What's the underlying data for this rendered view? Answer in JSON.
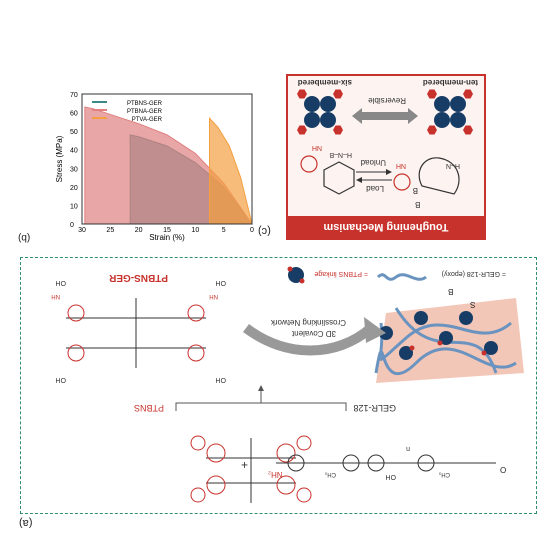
{
  "panel_b": {
    "label": "(b)",
    "chart_data": {
      "type": "area",
      "xlabel": "Strain (%)",
      "ylabel": "Stress (MPa)",
      "xlim": [
        0,
        30
      ],
      "ylim": [
        0,
        70
      ],
      "x_ticks": [
        "0",
        "5",
        "10",
        "15",
        "20",
        "25",
        "30"
      ],
      "y_ticks": [
        "0",
        "10",
        "20",
        "30",
        "40",
        "50",
        "60",
        "70"
      ],
      "series": [
        {
          "name": "PTVA-GER",
          "color": "#f4a040",
          "x": [
            0,
            2,
            4,
            6,
            7.5
          ],
          "y": [
            0,
            25,
            42,
            52,
            57
          ]
        },
        {
          "name": "PTBNA-GER",
          "color": "#e08080",
          "x": [
            0,
            5,
            10,
            15,
            20,
            25,
            28,
            29.5
          ],
          "y": [
            0,
            22,
            38,
            48,
            54,
            59,
            62,
            63
          ]
        },
        {
          "name": "PTBNS-GER",
          "color": "#3a8a8a",
          "x": [
            0,
            5,
            10,
            15,
            20,
            21.5
          ],
          "y": [
            0,
            20,
            33,
            42,
            47,
            48
          ]
        }
      ]
    }
  },
  "panel_c": {
    "label": "(c)",
    "title": "Toughening Mechanism",
    "six": "six-membered",
    "ten": "ten-membered",
    "reversible": "Reversible",
    "unload": "Unload",
    "load": "Load",
    "nh2_left": "NH",
    "nh2_right": "NH",
    "b_atom": "B",
    "hn": "H–N",
    "hnb": "H–N–B"
  },
  "panel_a": {
    "label": "(a)",
    "ptbns_ger": "PTBNS-GER",
    "ptbns": "PTBNS",
    "gelr": "GELR-128",
    "legend_link": "= PTBNS linkage",
    "legend_epoxy": "= GELR-128 (epoxy)",
    "network_l1": "3D Covalent",
    "network_l2": "Crosslinking Network",
    "plus": "+",
    "oh": "OH",
    "nh": "NH",
    "nh2": "NH₂",
    "ch3": "CH₃",
    "n_sub": "n",
    "b": "B",
    "o": "O",
    "s": "S"
  },
  "colors": {
    "red": "#c8322c",
    "navy": "#173d66",
    "teal": "#3a8a8a",
    "orange": "#f4a040",
    "pink": "#e08080",
    "green_border": "#2f8f6f"
  }
}
